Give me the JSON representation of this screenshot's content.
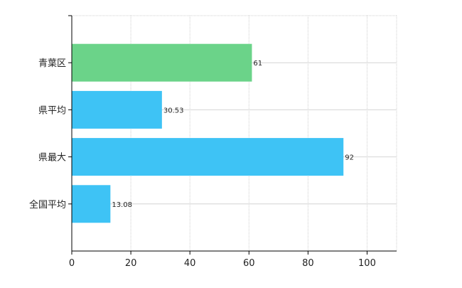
{
  "chart_data": {
    "type": "bar",
    "orientation": "horizontal",
    "categories": [
      "青葉区",
      "県平均",
      "県最大",
      "全国平均"
    ],
    "values": [
      61,
      30.53,
      92,
      13.08
    ],
    "value_labels": [
      "61",
      "30.53",
      "92",
      "13.08"
    ],
    "bar_colors": [
      "#6bd389",
      "#3ec3f5",
      "#3ec3f5",
      "#3ec3f5"
    ],
    "title": "",
    "xlabel": "",
    "ylabel": "",
    "xlim": [
      0,
      110
    ],
    "xticks": [
      0,
      20,
      40,
      60,
      80,
      100
    ],
    "xtick_labels": [
      "0",
      "20",
      "40",
      "60",
      "80",
      "100"
    ],
    "grid": true,
    "legend": "none"
  }
}
